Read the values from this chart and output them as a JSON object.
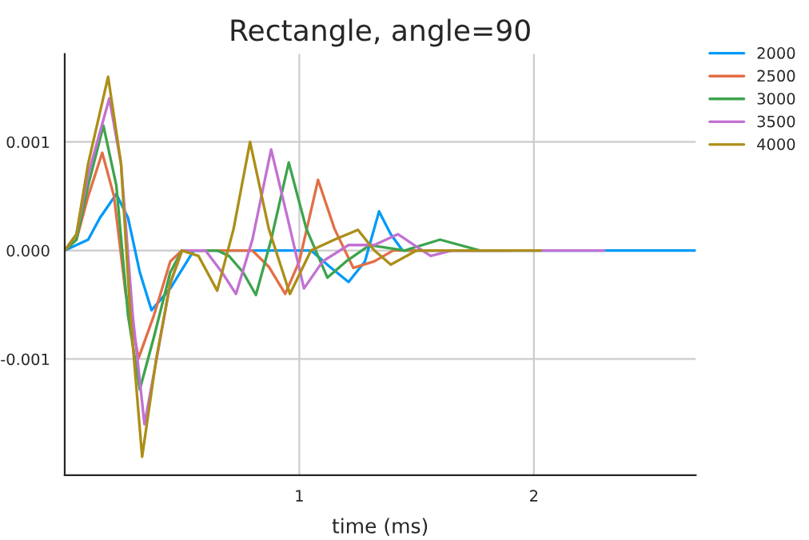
{
  "chart_data": {
    "type": "line",
    "title": "Rectangle, angle=90",
    "xlabel": "time (ms)",
    "xlim": [
      0,
      2.69
    ],
    "ylim": [
      -0.00207,
      0.00181
    ],
    "xticks": [
      1,
      2
    ],
    "yticks": [
      {
        "value": -0.001,
        "label": "-0.001"
      },
      {
        "value": 0,
        "label": "0.000"
      },
      {
        "value": 0.001,
        "label": "0.001"
      }
    ],
    "grid": true,
    "legend": "top right",
    "line_style": "solid",
    "series": [
      {
        "name": "2000",
        "color": "#009af9",
        "x": [
          0,
          0.1,
          0.15,
          0.22,
          0.27,
          0.32,
          0.37,
          0.45,
          0.55,
          1.05,
          1.13,
          1.21,
          1.28,
          1.34,
          1.39,
          1.44,
          2.69
        ],
        "values": [
          0,
          0.0001,
          0.0003,
          0.00052,
          0.0003,
          -0.0002,
          -0.00055,
          -0.00035,
          0,
          0,
          -0.00015,
          -0.00029,
          -0.0001,
          0.00036,
          0.00015,
          0,
          0
        ]
      },
      {
        "name": "2500",
        "color": "#e26f46",
        "x": [
          0,
          0.05,
          0.1,
          0.16,
          0.21,
          0.26,
          0.315,
          0.38,
          0.45,
          0.5,
          0.8,
          0.87,
          0.94,
          1.0,
          1.08,
          1.15,
          1.23,
          1.32,
          1.4,
          1.9
        ],
        "values": [
          0,
          0.0001,
          0.0005,
          0.0009,
          0.0005,
          -0.0004,
          -0.00099,
          -0.0006,
          -0.0001,
          0,
          0,
          -0.00015,
          -0.0004,
          -0.0001,
          0.00065,
          0.0002,
          -0.00016,
          -0.0001,
          0,
          0
        ]
      },
      {
        "name": "3000",
        "color": "#3da44d",
        "x": [
          0,
          0.05,
          0.1,
          0.165,
          0.22,
          0.27,
          0.32,
          0.38,
          0.45,
          0.5,
          0.65,
          0.7,
          0.76,
          0.815,
          0.88,
          0.955,
          1.03,
          1.12,
          1.2,
          1.3,
          1.45,
          1.6,
          1.77
        ],
        "values": [
          0,
          0.0001,
          0.0006,
          0.00115,
          0.0006,
          -0.0006,
          -0.00128,
          -0.0008,
          -0.0002,
          0,
          0,
          -5e-05,
          -0.0002,
          -0.00041,
          0.0001,
          0.00081,
          0.0002,
          -0.00025,
          -0.0001,
          5e-05,
          0,
          0.0001,
          0
        ]
      },
      {
        "name": "3500",
        "color": "#c271d2",
        "x": [
          0,
          0.05,
          0.1,
          0.19,
          0.24,
          0.29,
          0.34,
          0.4,
          0.45,
          0.5,
          0.6,
          0.67,
          0.73,
          0.8,
          0.88,
          0.95,
          1.02,
          1.1,
          1.21,
          1.32,
          1.42,
          1.49,
          1.56,
          1.65,
          2.3
        ],
        "values": [
          0,
          0.00015,
          0.0007,
          0.0014,
          0.0008,
          -0.0006,
          -0.0016,
          -0.0009,
          -0.0003,
          0,
          0,
          -0.0002,
          -0.0004,
          0.0001,
          0.00093,
          0.0003,
          -0.00035,
          -0.0001,
          5e-05,
          5e-05,
          0.00015,
          5e-05,
          -5e-05,
          0,
          0
        ]
      },
      {
        "name": "4000",
        "color": "#ac8e18",
        "x": [
          0,
          0.05,
          0.1,
          0.185,
          0.24,
          0.28,
          0.33,
          0.39,
          0.45,
          0.5,
          0.57,
          0.65,
          0.72,
          0.79,
          0.87,
          0.96,
          1.05,
          1.15,
          1.25,
          1.32,
          1.39,
          1.5,
          2.03
        ],
        "values": [
          0,
          0.00015,
          0.0008,
          0.0016,
          0.0008,
          -0.0006,
          -0.0019,
          -0.001,
          -0.0003,
          0,
          -5e-05,
          -0.00037,
          0.0002,
          0.001,
          0.0002,
          -0.0004,
          0,
          0.0001,
          0.00019,
          0,
          -0.00013,
          0,
          0
        ]
      }
    ]
  }
}
